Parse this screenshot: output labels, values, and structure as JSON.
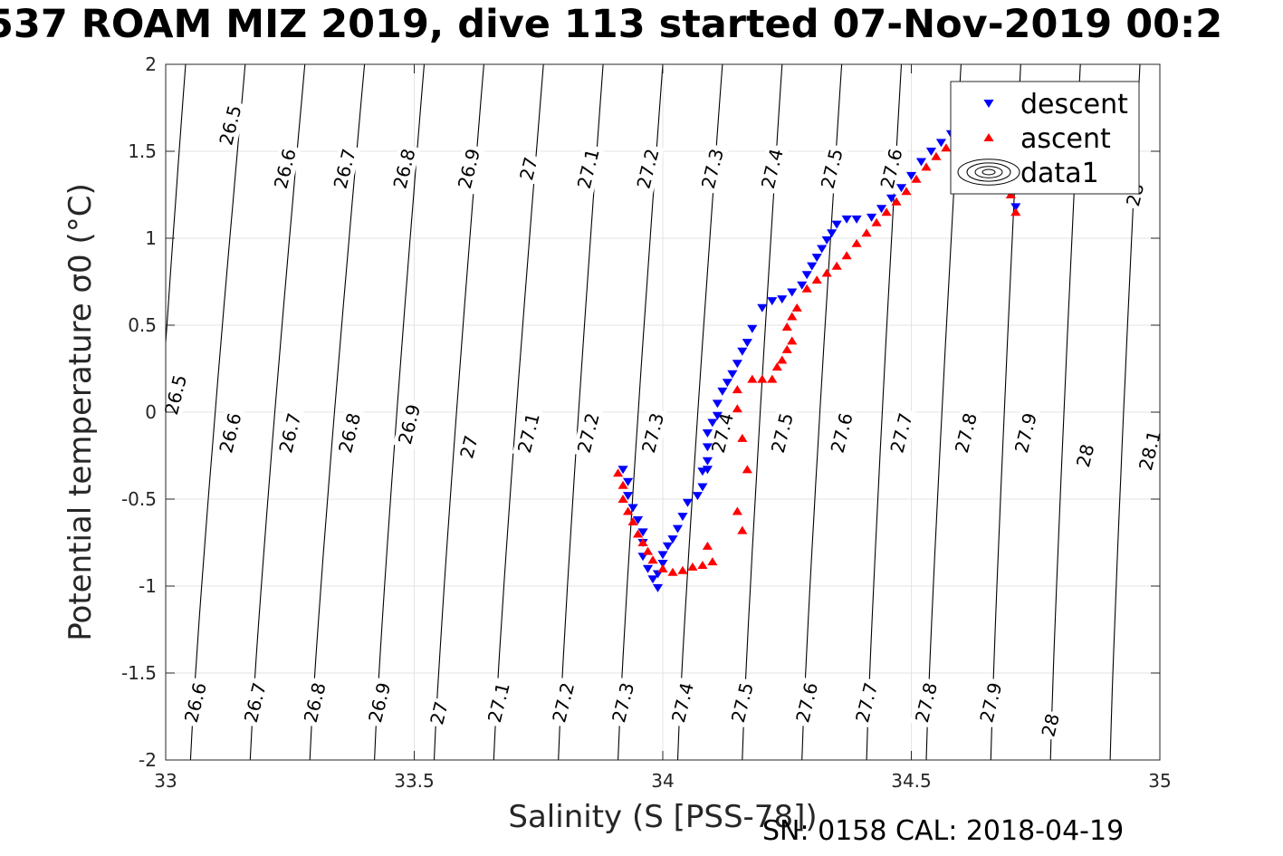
{
  "title": "537 ROAM MIZ 2019, dive 113 started 07-Nov-2019 00:2",
  "footer": "SN: 0158  CAL: 2018-04-19",
  "chart_data": {
    "type": "scatter",
    "xlabel": "Salinity (S [PSS-78])",
    "ylabel": "Potential temperature σ0 (°C)",
    "xlim": [
      33,
      35
    ],
    "ylim": [
      -2,
      2
    ],
    "xticks": [
      {
        "value": 33,
        "label": "33"
      },
      {
        "value": 33.5,
        "label": "33.5"
      },
      {
        "value": 34,
        "label": "34"
      },
      {
        "value": 34.5,
        "label": "34.5"
      },
      {
        "value": 35,
        "label": "35"
      }
    ],
    "yticks": [
      {
        "value": 2,
        "label": "2"
      },
      {
        "value": 1.5,
        "label": "1.5"
      },
      {
        "value": 1,
        "label": "1"
      },
      {
        "value": 0.5,
        "label": "0.5"
      },
      {
        "value": 0,
        "label": "0"
      },
      {
        "value": -0.5,
        "label": "-0.5"
      },
      {
        "value": -1,
        "label": "-1"
      },
      {
        "value": -1.5,
        "label": "-1.5"
      },
      {
        "value": -2,
        "label": "-2"
      }
    ],
    "grid": true,
    "legend_position": "top-right",
    "legend": [
      {
        "label": "descent",
        "color": "#0000ff",
        "marker": "triangle-down"
      },
      {
        "label": "ascent",
        "color": "#ff0000",
        "marker": "triangle-up"
      },
      {
        "label": "data1",
        "marker": "contour"
      }
    ],
    "contours": [
      {
        "label": "26.5",
        "s_at_2": 33.04,
        "s_at_m2": 32.95
      },
      {
        "label": "26.6",
        "s_at_2": 33.16,
        "s_at_m2": 33.05
      },
      {
        "label": "26.7",
        "s_at_2": 33.28,
        "s_at_m2": 33.17
      },
      {
        "label": "26.8",
        "s_at_2": 33.4,
        "s_at_m2": 33.29
      },
      {
        "label": "26.9",
        "s_at_2": 33.52,
        "s_at_m2": 33.42
      },
      {
        "label": "27",
        "s_at_2": 33.64,
        "s_at_m2": 33.54
      },
      {
        "label": "27.1",
        "s_at_2": 33.76,
        "s_at_m2": 33.66
      },
      {
        "label": "27.2",
        "s_at_2": 33.88,
        "s_at_m2": 33.79
      },
      {
        "label": "27.3",
        "s_at_2": 34.0,
        "s_at_m2": 33.91
      },
      {
        "label": "27.4",
        "s_at_2": 34.12,
        "s_at_m2": 34.03
      },
      {
        "label": "27.5",
        "s_at_2": 34.24,
        "s_at_m2": 34.16
      },
      {
        "label": "27.6",
        "s_at_2": 34.36,
        "s_at_m2": 34.28
      },
      {
        "label": "27.7",
        "s_at_2": 34.48,
        "s_at_m2": 34.41
      },
      {
        "label": "27.8",
        "s_at_2": 34.6,
        "s_at_m2": 34.53
      },
      {
        "label": "27.9",
        "s_at_2": 34.72,
        "s_at_m2": 34.66
      },
      {
        "label": "28",
        "s_at_2": 34.84,
        "s_at_m2": 34.78
      },
      {
        "label": "28.1",
        "s_at_2": 34.96,
        "s_at_m2": 34.9
      }
    ],
    "contour_labels": [
      {
        "text": "26.5",
        "s": 33.13,
        "t": 1.65
      },
      {
        "text": "26.6",
        "s": 33.24,
        "t": 1.4
      },
      {
        "text": "26.7",
        "s": 33.36,
        "t": 1.4
      },
      {
        "text": "26.8",
        "s": 33.48,
        "t": 1.4
      },
      {
        "text": "26.9",
        "s": 33.61,
        "t": 1.4
      },
      {
        "text": "27",
        "s": 33.73,
        "t": 1.4
      },
      {
        "text": "27.1",
        "s": 33.85,
        "t": 1.4
      },
      {
        "text": "27.2",
        "s": 33.97,
        "t": 1.4
      },
      {
        "text": "27.3",
        "s": 34.1,
        "t": 1.4
      },
      {
        "text": "27.4",
        "s": 34.22,
        "t": 1.4
      },
      {
        "text": "27.5",
        "s": 34.34,
        "t": 1.4
      },
      {
        "text": "27.6",
        "s": 34.46,
        "t": 1.4
      },
      {
        "text": "28",
        "s": 34.95,
        "t": 1.25
      },
      {
        "text": "26.5",
        "s": 33.02,
        "t": 0.1
      },
      {
        "text": "26.6",
        "s": 33.13,
        "t": -0.12
      },
      {
        "text": "26.7",
        "s": 33.25,
        "t": -0.12
      },
      {
        "text": "26.8",
        "s": 33.37,
        "t": -0.12
      },
      {
        "text": "26.9",
        "s": 33.49,
        "t": -0.07
      },
      {
        "text": "27",
        "s": 33.61,
        "t": -0.2
      },
      {
        "text": "27.1",
        "s": 33.73,
        "t": -0.12
      },
      {
        "text": "27.2",
        "s": 33.85,
        "t": -0.12
      },
      {
        "text": "27.3",
        "s": 33.98,
        "t": -0.12
      },
      {
        "text": "27.4",
        "s": 34.12,
        "t": -0.12
      },
      {
        "text": "27.5",
        "s": 34.24,
        "t": -0.12
      },
      {
        "text": "27.6",
        "s": 34.36,
        "t": -0.12
      },
      {
        "text": "27.7",
        "s": 34.48,
        "t": -0.12
      },
      {
        "text": "27.8",
        "s": 34.61,
        "t": -0.12
      },
      {
        "text": "27.9",
        "s": 34.73,
        "t": -0.12
      },
      {
        "text": "28",
        "s": 34.85,
        "t": -0.25
      },
      {
        "text": "28.1",
        "s": 34.98,
        "t": -0.22
      },
      {
        "text": "26.6",
        "s": 33.06,
        "t": -1.67
      },
      {
        "text": "26.7",
        "s": 33.18,
        "t": -1.67
      },
      {
        "text": "26.8",
        "s": 33.3,
        "t": -1.67
      },
      {
        "text": "26.9",
        "s": 33.43,
        "t": -1.67
      },
      {
        "text": "27",
        "s": 33.55,
        "t": -1.73
      },
      {
        "text": "27.1",
        "s": 33.67,
        "t": -1.67
      },
      {
        "text": "27.2",
        "s": 33.8,
        "t": -1.67
      },
      {
        "text": "27.3",
        "s": 33.92,
        "t": -1.67
      },
      {
        "text": "27.4",
        "s": 34.04,
        "t": -1.67
      },
      {
        "text": "27.5",
        "s": 34.16,
        "t": -1.67
      },
      {
        "text": "27.6",
        "s": 34.29,
        "t": -1.67
      },
      {
        "text": "27.7",
        "s": 34.41,
        "t": -1.67
      },
      {
        "text": "27.8",
        "s": 34.53,
        "t": -1.67
      },
      {
        "text": "27.9",
        "s": 34.66,
        "t": -1.67
      },
      {
        "text": "28",
        "s": 34.78,
        "t": -1.8
      }
    ],
    "series": [
      {
        "name": "descent",
        "color": "#0000ff",
        "marker": "triangle-down",
        "points": [
          [
            33.92,
            -0.33
          ],
          [
            33.93,
            -0.4
          ],
          [
            33.93,
            -0.48
          ],
          [
            33.94,
            -0.55
          ],
          [
            33.95,
            -0.62
          ],
          [
            33.96,
            -0.69
          ],
          [
            33.96,
            -0.75
          ],
          [
            33.96,
            -0.83
          ],
          [
            33.97,
            -0.9
          ],
          [
            33.98,
            -0.96
          ],
          [
            33.99,
            -1.01
          ],
          [
            33.99,
            -0.93
          ],
          [
            34.0,
            -0.87
          ],
          [
            34.0,
            -0.82
          ],
          [
            34.01,
            -0.77
          ],
          [
            34.02,
            -0.73
          ],
          [
            34.03,
            -0.67
          ],
          [
            34.04,
            -0.6
          ],
          [
            34.05,
            -0.52
          ],
          [
            34.07,
            -0.48
          ],
          [
            34.08,
            -0.43
          ],
          [
            34.08,
            -0.34
          ],
          [
            34.09,
            -0.33
          ],
          [
            34.09,
            -0.28
          ],
          [
            34.09,
            -0.2
          ],
          [
            34.09,
            -0.12
          ],
          [
            34.1,
            -0.06
          ],
          [
            34.11,
            -0.02
          ],
          [
            34.11,
            0.05
          ],
          [
            34.12,
            0.12
          ],
          [
            34.13,
            0.17
          ],
          [
            34.14,
            0.22
          ],
          [
            34.15,
            0.28
          ],
          [
            34.16,
            0.35
          ],
          [
            34.17,
            0.4
          ],
          [
            34.18,
            0.48
          ],
          [
            34.2,
            0.6
          ],
          [
            34.22,
            0.64
          ],
          [
            34.24,
            0.65
          ],
          [
            34.26,
            0.69
          ],
          [
            34.28,
            0.73
          ],
          [
            34.29,
            0.79
          ],
          [
            34.3,
            0.84
          ],
          [
            34.31,
            0.89
          ],
          [
            34.32,
            0.94
          ],
          [
            34.33,
            0.99
          ],
          [
            34.34,
            1.03
          ],
          [
            34.35,
            1.08
          ],
          [
            34.37,
            1.11
          ],
          [
            34.39,
            1.11
          ],
          [
            34.42,
            1.12
          ],
          [
            34.44,
            1.17
          ],
          [
            34.46,
            1.23
          ],
          [
            34.48,
            1.29
          ],
          [
            34.5,
            1.36
          ],
          [
            34.52,
            1.44
          ],
          [
            34.54,
            1.5
          ],
          [
            34.56,
            1.55
          ],
          [
            34.58,
            1.6
          ],
          [
            34.6,
            1.64
          ],
          [
            34.62,
            1.68
          ],
          [
            34.64,
            1.72
          ],
          [
            34.67,
            1.62
          ],
          [
            34.69,
            1.45
          ],
          [
            34.7,
            1.3
          ],
          [
            34.71,
            1.18
          ]
        ]
      },
      {
        "name": "ascent",
        "color": "#ff0000",
        "marker": "triangle-up",
        "points": [
          [
            33.91,
            -0.35
          ],
          [
            33.92,
            -0.42
          ],
          [
            33.92,
            -0.5
          ],
          [
            33.93,
            -0.57
          ],
          [
            33.94,
            -0.63
          ],
          [
            33.95,
            -0.7
          ],
          [
            33.96,
            -0.75
          ],
          [
            33.97,
            -0.8
          ],
          [
            33.98,
            -0.85
          ],
          [
            34.0,
            -0.9
          ],
          [
            34.02,
            -0.92
          ],
          [
            34.04,
            -0.91
          ],
          [
            34.06,
            -0.89
          ],
          [
            34.08,
            -0.88
          ],
          [
            34.1,
            -0.86
          ],
          [
            34.09,
            -0.77
          ],
          [
            34.15,
            -0.57
          ],
          [
            34.16,
            -0.68
          ],
          [
            34.17,
            -0.33
          ],
          [
            34.16,
            -0.15
          ],
          [
            34.15,
            0.02
          ],
          [
            34.15,
            0.13
          ],
          [
            34.18,
            0.19
          ],
          [
            34.2,
            0.19
          ],
          [
            34.22,
            0.19
          ],
          [
            34.23,
            0.26
          ],
          [
            34.24,
            0.3
          ],
          [
            34.25,
            0.36
          ],
          [
            34.26,
            0.41
          ],
          [
            34.25,
            0.49
          ],
          [
            34.26,
            0.55
          ],
          [
            34.27,
            0.6
          ],
          [
            34.29,
            0.71
          ],
          [
            34.31,
            0.76
          ],
          [
            34.33,
            0.8
          ],
          [
            34.35,
            0.84
          ],
          [
            34.37,
            0.9
          ],
          [
            34.39,
            0.97
          ],
          [
            34.41,
            1.03
          ],
          [
            34.43,
            1.09
          ],
          [
            34.45,
            1.15
          ],
          [
            34.47,
            1.21
          ],
          [
            34.49,
            1.27
          ],
          [
            34.51,
            1.34
          ],
          [
            34.53,
            1.41
          ],
          [
            34.55,
            1.47
          ],
          [
            34.57,
            1.52
          ],
          [
            34.59,
            1.56
          ],
          [
            34.61,
            1.6
          ],
          [
            34.63,
            1.62
          ],
          [
            34.66,
            1.55
          ],
          [
            34.68,
            1.4
          ],
          [
            34.7,
            1.25
          ],
          [
            34.71,
            1.15
          ]
        ]
      }
    ]
  }
}
